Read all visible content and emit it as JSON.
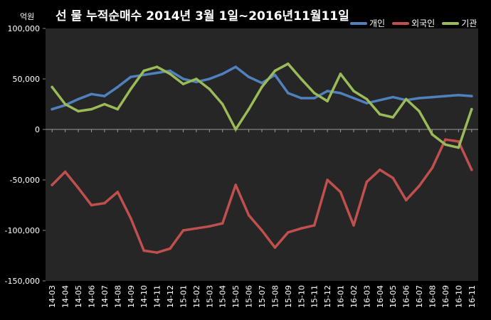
{
  "chart_data": {
    "type": "line",
    "title": "선 물 누적순매수 2014년 3월 1일~2016년11월11일",
    "unit_label": "억원",
    "ylim": [
      -150000,
      100000
    ],
    "yticks": [
      100000,
      50000,
      0,
      -50000,
      -100000,
      -150000
    ],
    "ytick_labels": [
      "100,000",
      "50,000",
      "0",
      "-50,000",
      "-100,000",
      "-150,000"
    ],
    "categories": [
      "14-03",
      "14-04",
      "14-05",
      "14-06",
      "14-07",
      "14-08",
      "14-09",
      "14-10",
      "14-11",
      "14-12",
      "15-01",
      "15-02",
      "15-03",
      "15-04",
      "15-05",
      "15-06",
      "15-07",
      "15-08",
      "15-09",
      "15-10",
      "15-11",
      "15-12",
      "16-01",
      "16-02",
      "16-03",
      "16-04",
      "16-05",
      "16-06",
      "16-07",
      "16-08",
      "16-09",
      "16-10",
      "16-11"
    ],
    "legend_position": "top-right",
    "grid": false,
    "series": [
      {
        "name": "개인",
        "color": "#4f81bd",
        "values": [
          20000,
          24000,
          30000,
          35000,
          33000,
          42000,
          52000,
          54000,
          56000,
          58000,
          50000,
          47000,
          50000,
          55000,
          62000,
          52000,
          46000,
          54000,
          36000,
          31000,
          31000,
          38000,
          36000,
          31000,
          26000,
          29000,
          32000,
          29000,
          31000,
          32000,
          33000,
          34000,
          33000
        ]
      },
      {
        "name": "외국인",
        "color": "#c0504d",
        "values": [
          -55000,
          -42000,
          -58000,
          -75000,
          -73000,
          -62000,
          -88000,
          -120000,
          -122000,
          -118000,
          -100000,
          -98000,
          -96000,
          -93000,
          -55000,
          -85000,
          -100000,
          -117000,
          -102000,
          -98000,
          -95000,
          -50000,
          -62000,
          -95000,
          -52000,
          -40000,
          -48000,
          -70000,
          -56000,
          -38000,
          -10000,
          -12000,
          -40000
        ]
      },
      {
        "name": "기관",
        "color": "#9bbb59",
        "values": [
          42000,
          25000,
          18000,
          20000,
          25000,
          20000,
          40000,
          58000,
          62000,
          55000,
          45000,
          50000,
          40000,
          25000,
          0,
          20000,
          42000,
          58000,
          65000,
          50000,
          36000,
          28000,
          55000,
          38000,
          30000,
          15000,
          12000,
          30000,
          18000,
          -5000,
          -15000,
          -18000,
          20000
        ]
      }
    ]
  }
}
